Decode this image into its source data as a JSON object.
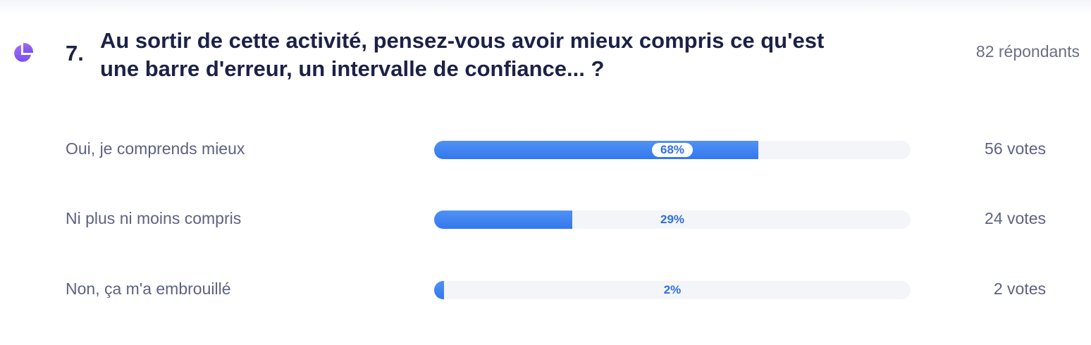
{
  "question": {
    "number": "7.",
    "title": "Au sortir de cette activité, pensez-vous avoir mieux compris ce qu'est une barre d'erreur, un intervalle de confiance... ?",
    "icon": "pie-chart-icon",
    "icon_color": "#8b5cf6",
    "respondents": "82 répondants"
  },
  "results": [
    {
      "label": "Oui, je comprends mieux",
      "percent": 68,
      "percent_label": "68%",
      "votes": "56 votes"
    },
    {
      "label": "Ni plus ni moins compris",
      "percent": 29,
      "percent_label": "29%",
      "votes": "24 votes"
    },
    {
      "label": "Non, ça m'a embrouillé",
      "percent": 2,
      "percent_label": "2%",
      "votes": "2 votes"
    }
  ],
  "colors": {
    "bar_fill": "#3a7ef0",
    "bar_track": "#f4f5f9",
    "title": "#1c2146",
    "text_muted": "#5d6282"
  }
}
